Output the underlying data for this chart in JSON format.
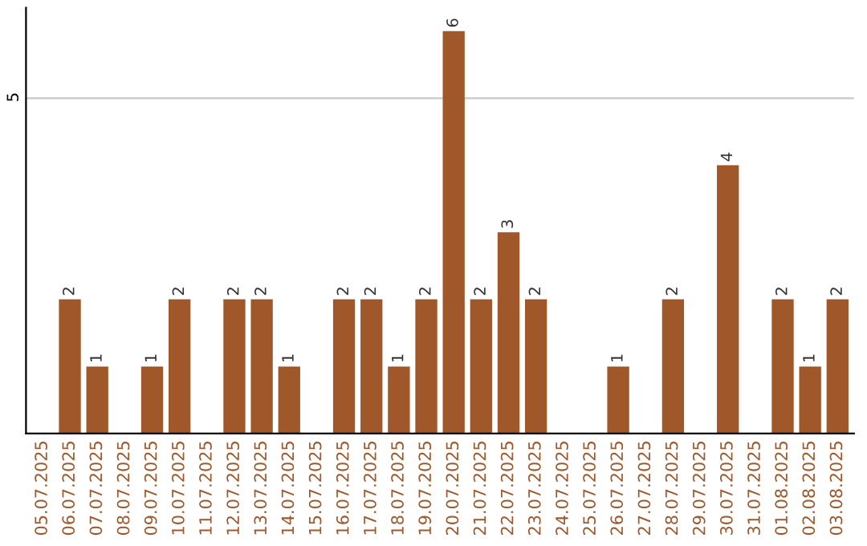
{
  "chart_data": {
    "type": "bar",
    "categories": [
      "05.07.2025",
      "06.07.2025",
      "07.07.2025",
      "08.07.2025",
      "09.07.2025",
      "10.07.2025",
      "11.07.2025",
      "12.07.2025",
      "13.07.2025",
      "14.07.2025",
      "15.07.2025",
      "16.07.2025",
      "17.07.2025",
      "18.07.2025",
      "19.07.2025",
      "20.07.2025",
      "21.07.2025",
      "22.07.2025",
      "23.07.2025",
      "24.07.2025",
      "25.07.2025",
      "26.07.2025",
      "27.07.2025",
      "28.07.2025",
      "29.07.2025",
      "30.07.2025",
      "31.07.2025",
      "01.08.2025",
      "02.08.2025",
      "03.08.2025"
    ],
    "values": [
      0,
      2,
      1,
      0,
      1,
      2,
      0,
      2,
      2,
      1,
      0,
      2,
      2,
      1,
      2,
      6,
      2,
      3,
      2,
      0,
      0,
      1,
      0,
      2,
      0,
      4,
      0,
      2,
      1,
      2
    ],
    "value_labels": [
      null,
      "2",
      "1",
      null,
      "1",
      "2",
      null,
      "2",
      "2",
      "1",
      null,
      "2",
      "2",
      "1",
      "2",
      "6",
      "2",
      "3",
      "2",
      null,
      null,
      "1",
      null,
      "2",
      null,
      "4",
      null,
      "2",
      "1",
      "2"
    ],
    "color": "#a0572a",
    "ylim": [
      0,
      6.35
    ],
    "yticks": [
      5
    ],
    "grid": "y"
  }
}
